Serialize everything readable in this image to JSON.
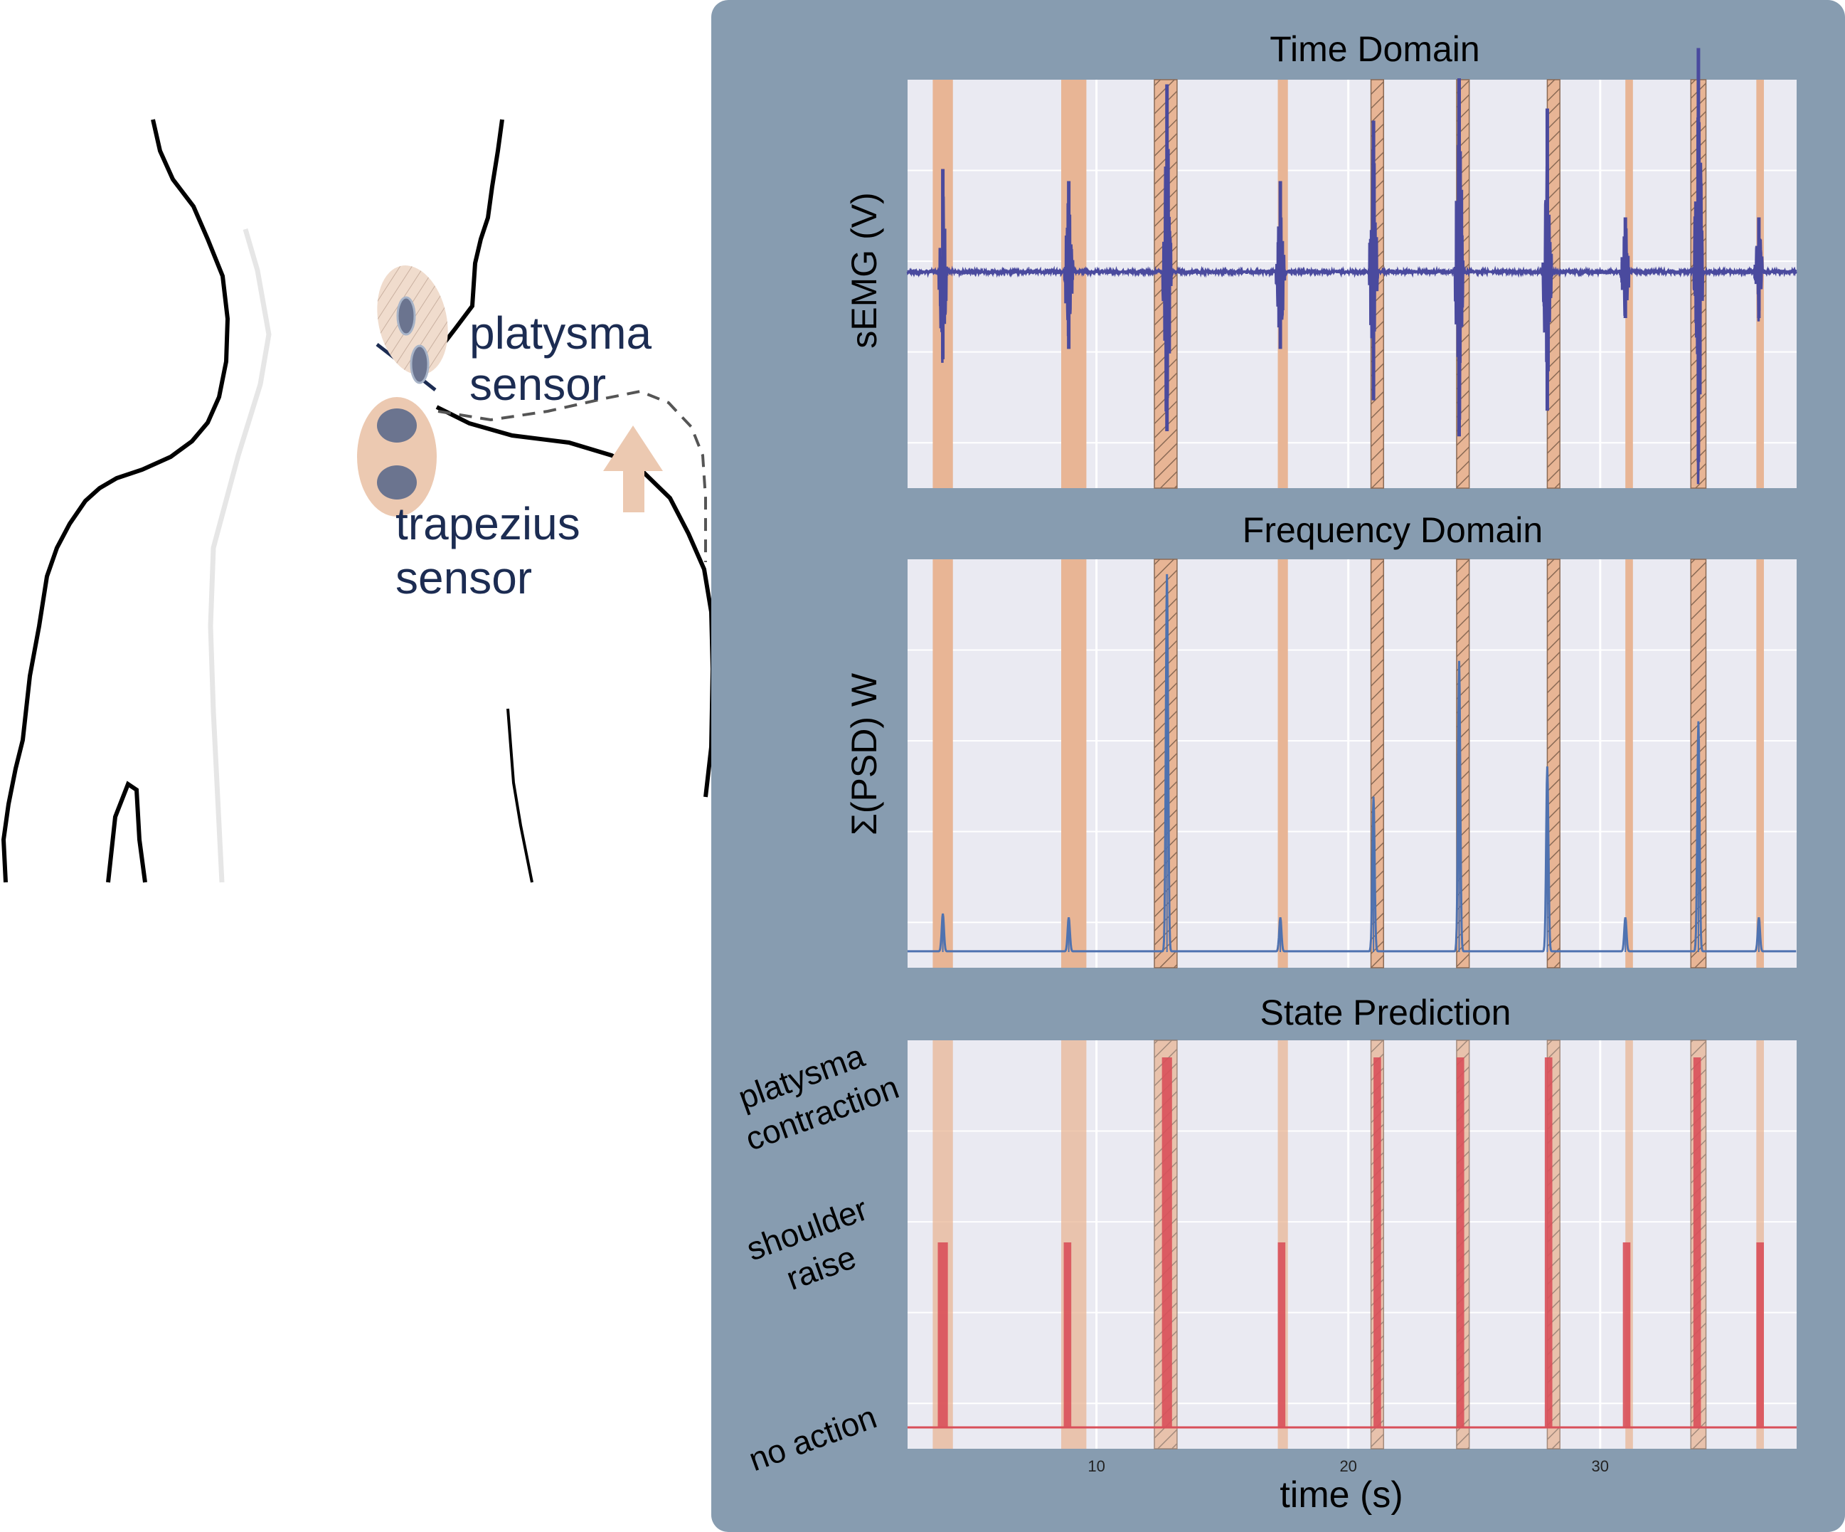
{
  "diagram": {
    "sensor_labels": {
      "platysma_line1": "platysma",
      "platysma_line2": "sensor",
      "trapezius_line1": "trapezius",
      "trapezius_line2": "sensor"
    }
  },
  "panels": {
    "time_domain": {
      "title": "Time Domain",
      "ylabel": "sEMG (V)"
    },
    "frequency_domain": {
      "title": "Frequency Domain",
      "ylabel": "Σ(PSD) W"
    },
    "state_prediction": {
      "title": "State Prediction",
      "state_labels": {
        "platysma_1": "platysma",
        "platysma_2": "contraction",
        "shoulder_1": "shoulder",
        "shoulder_2": "raise",
        "none": "no action"
      }
    },
    "xlabel": "time (s)",
    "xticks": [
      "10",
      "20",
      "30"
    ]
  },
  "colors": {
    "panel_background": "#879cb0",
    "plot_background": "#eaeaf2",
    "highlight": "#e8b595",
    "semg_trace": "#4a4a9e",
    "psd_trace": "#4f72b0",
    "prediction": "#d9505a",
    "label_navy": "#1c2c52"
  },
  "chart_data": {
    "type": "line",
    "x_unit": "s",
    "xlim": [
      2.5,
      37.8
    ],
    "events": [
      {
        "start": 3.5,
        "end": 4.3,
        "label": "shoulder raise"
      },
      {
        "start": 8.6,
        "end": 9.6,
        "label": "shoulder raise"
      },
      {
        "start": 12.3,
        "end": 13.2,
        "label": "platysma contraction"
      },
      {
        "start": 17.2,
        "end": 17.6,
        "label": "shoulder raise"
      },
      {
        "start": 20.9,
        "end": 21.4,
        "label": "platysma contraction"
      },
      {
        "start": 24.3,
        "end": 24.8,
        "label": "platysma contraction"
      },
      {
        "start": 27.9,
        "end": 28.4,
        "label": "platysma contraction"
      },
      {
        "start": 31.0,
        "end": 31.3,
        "label": "shoulder raise"
      },
      {
        "start": 33.6,
        "end": 34.2,
        "label": "platysma contraction"
      },
      {
        "start": 36.2,
        "end": 36.5,
        "label": "shoulder raise"
      }
    ],
    "semg_bursts": [
      {
        "t": 3.9,
        "amp": 0.85
      },
      {
        "t": 8.9,
        "amp": 0.75
      },
      {
        "t": 12.8,
        "amp": 1.55
      },
      {
        "t": 17.3,
        "amp": 0.75
      },
      {
        "t": 21.0,
        "amp": 1.25
      },
      {
        "t": 24.4,
        "amp": 1.6
      },
      {
        "t": 27.9,
        "amp": 1.35
      },
      {
        "t": 31.0,
        "amp": 0.45
      },
      {
        "t": 33.9,
        "amp": 1.85
      },
      {
        "t": 36.3,
        "amp": 0.45
      }
    ],
    "psd_peaks": [
      {
        "t": 3.9,
        "value": 0.1
      },
      {
        "t": 8.9,
        "value": 0.09
      },
      {
        "t": 12.8,
        "value": 1.0
      },
      {
        "t": 17.3,
        "value": 0.09
      },
      {
        "t": 21.0,
        "value": 0.41
      },
      {
        "t": 24.4,
        "value": 0.77
      },
      {
        "t": 27.9,
        "value": 0.49
      },
      {
        "t": 31.0,
        "value": 0.09
      },
      {
        "t": 33.9,
        "value": 0.61
      },
      {
        "t": 36.3,
        "value": 0.09
      }
    ],
    "predictions": [
      {
        "start": 3.7,
        "end": 4.1,
        "state": "shoulder raise"
      },
      {
        "start": 8.7,
        "end": 9.0,
        "state": "shoulder raise"
      },
      {
        "start": 12.6,
        "end": 13.0,
        "state": "platysma contraction"
      },
      {
        "start": 17.2,
        "end": 17.5,
        "state": "shoulder raise"
      },
      {
        "start": 21.0,
        "end": 21.3,
        "state": "platysma contraction"
      },
      {
        "start": 24.3,
        "end": 24.6,
        "state": "platysma contraction"
      },
      {
        "start": 27.8,
        "end": 28.1,
        "state": "platysma contraction"
      },
      {
        "start": 30.9,
        "end": 31.2,
        "state": "shoulder raise"
      },
      {
        "start": 33.7,
        "end": 34.0,
        "state": "platysma contraction"
      },
      {
        "start": 36.2,
        "end": 36.5,
        "state": "shoulder raise"
      }
    ]
  }
}
